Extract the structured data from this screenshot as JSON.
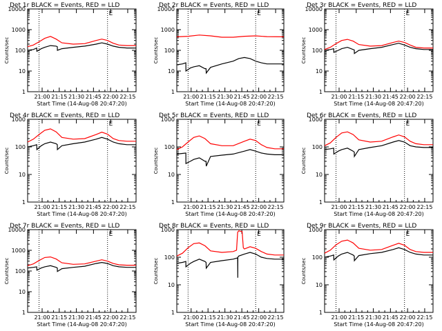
{
  "figure": {
    "ylabel": "Counts/sec",
    "xlabel": "Start Time (14-Aug-08 20:47:20)",
    "corner_mark": "E",
    "colors": {
      "events": "#000000",
      "lld": "#ff0000",
      "axes": "#000000"
    }
  },
  "chart_data": [
    {
      "type": "line",
      "title": "Det 1r BLACK = Events, RED = LLD",
      "xlabel": "Start Time (14-Aug-08 20:47:20)",
      "ylabel": "Counts/sec",
      "yscale": "log",
      "ylim": [
        1,
        10000
      ],
      "yticks": [
        "1",
        "10",
        "100",
        "1000",
        "10000"
      ],
      "xticks": [
        "21:00",
        "21:15",
        "21:30",
        "21:45",
        "22:00",
        "22:15"
      ],
      "xlim_minutes": [
        0,
        95
      ],
      "xtick_minutes": [
        12.7,
        27.7,
        42.7,
        57.7,
        72.7,
        87.7
      ],
      "dotted_lines_minutes": [
        10,
        70
      ],
      "series": [
        {
          "name": "Events",
          "color": "#000000",
          "x": [
            0,
            5,
            8,
            8.1,
            12,
            15,
            20,
            25,
            26,
            26.1,
            30,
            40,
            50,
            60,
            65,
            70,
            75,
            80,
            87,
            95
          ],
          "y": [
            100,
            110,
            130,
            90,
            120,
            140,
            170,
            160,
            150,
            100,
            120,
            140,
            160,
            200,
            230,
            200,
            160,
            140,
            130,
            130
          ]
        },
        {
          "name": "LLD",
          "color": "#ff0000",
          "x": [
            0,
            5,
            10,
            15,
            20,
            25,
            30,
            40,
            50,
            60,
            65,
            70,
            75,
            80,
            87,
            95
          ],
          "y": [
            150,
            180,
            260,
            380,
            470,
            350,
            230,
            200,
            210,
            300,
            350,
            300,
            220,
            180,
            170,
            170
          ]
        }
      ]
    },
    {
      "type": "line",
      "title": "Det 2r BLACK = Events, RED = LLD",
      "xlabel": "Start Time (14-Aug-08 20:47:20)",
      "ylabel": "Counts/sec",
      "yscale": "log",
      "ylim": [
        1,
        10000
      ],
      "yticks": [
        "1",
        "10",
        "100",
        "1000",
        "10000"
      ],
      "xticks": [
        "21:00",
        "21:15",
        "21:30",
        "21:45",
        "22:00",
        "22:15"
      ],
      "xlim_minutes": [
        0,
        95
      ],
      "xtick_minutes": [
        12.7,
        27.7,
        42.7,
        57.7,
        72.7,
        87.7
      ],
      "dotted_lines_minutes": [
        10,
        70
      ],
      "series": [
        {
          "name": "Events",
          "color": "#000000",
          "x": [
            0,
            5,
            8,
            8.1,
            12,
            15,
            20,
            25,
            26,
            26.1,
            30,
            40,
            50,
            55,
            60,
            65,
            70,
            75,
            80,
            87,
            95
          ],
          "y": [
            20,
            22,
            25,
            10,
            14,
            16,
            18,
            13,
            13,
            8,
            15,
            22,
            30,
            40,
            45,
            40,
            30,
            25,
            22,
            22,
            22
          ]
        },
        {
          "name": "LLD",
          "color": "#ff0000",
          "x": [
            0,
            10,
            20,
            30,
            40,
            50,
            60,
            70,
            80,
            95
          ],
          "y": [
            450,
            480,
            550,
            500,
            430,
            430,
            480,
            500,
            460,
            450
          ]
        }
      ]
    },
    {
      "type": "line",
      "title": "Det 3r BLACK = Events, RED = LLD",
      "xlabel": "Start Time (14-Aug-08 20:47:20)",
      "ylabel": "Counts/sec",
      "yscale": "log",
      "ylim": [
        1,
        10000
      ],
      "yticks": [
        "1",
        "10",
        "100",
        "1000",
        "10000"
      ],
      "xticks": [
        "21:00",
        "21:15",
        "21:30",
        "21:45",
        "22:00",
        "22:15"
      ],
      "xlim_minutes": [
        0,
        95
      ],
      "xtick_minutes": [
        12.7,
        27.7,
        42.7,
        57.7,
        72.7,
        87.7
      ],
      "dotted_lines_minutes": [
        10,
        70
      ],
      "series": [
        {
          "name": "Events",
          "color": "#000000",
          "x": [
            0,
            5,
            8,
            8.1,
            12,
            15,
            20,
            25,
            26,
            26.1,
            30,
            40,
            50,
            60,
            65,
            70,
            75,
            80,
            87,
            95
          ],
          "y": [
            100,
            110,
            120,
            80,
            100,
            120,
            140,
            110,
            105,
            70,
            100,
            120,
            140,
            190,
            220,
            180,
            140,
            120,
            110,
            110
          ]
        },
        {
          "name": "LLD",
          "color": "#ff0000",
          "x": [
            0,
            5,
            10,
            15,
            20,
            25,
            30,
            40,
            50,
            60,
            65,
            70,
            75,
            80,
            87,
            95
          ],
          "y": [
            110,
            140,
            210,
            300,
            340,
            280,
            190,
            160,
            170,
            240,
            280,
            240,
            180,
            140,
            130,
            130
          ]
        }
      ]
    },
    {
      "type": "line",
      "title": "Det 4r BLACK = Events, RED = LLD",
      "xlabel": "Start Time (14-Aug-08 20:47:20)",
      "ylabel": "Counts/sec",
      "yscale": "log",
      "ylim": [
        1,
        1000
      ],
      "yticks": [
        "1",
        "10",
        "100",
        "1000"
      ],
      "xticks": [
        "21:00",
        "21:15",
        "21:30",
        "21:45",
        "22:00",
        "22:15"
      ],
      "xlim_minutes": [
        0,
        95
      ],
      "xtick_minutes": [
        12.7,
        27.7,
        42.7,
        57.7,
        72.7,
        87.7
      ],
      "dotted_lines_minutes": [
        10,
        70
      ],
      "series": [
        {
          "name": "Events",
          "color": "#000000",
          "x": [
            0,
            5,
            8,
            8.1,
            12,
            15,
            20,
            25,
            26,
            26.1,
            30,
            40,
            50,
            60,
            65,
            70,
            75,
            80,
            87,
            95
          ],
          "y": [
            100,
            110,
            120,
            80,
            110,
            130,
            150,
            130,
            120,
            80,
            110,
            130,
            150,
            190,
            220,
            190,
            150,
            130,
            120,
            120
          ]
        },
        {
          "name": "LLD",
          "color": "#ff0000",
          "x": [
            0,
            5,
            10,
            15,
            20,
            25,
            30,
            40,
            50,
            60,
            65,
            70,
            75,
            80,
            87,
            95
          ],
          "y": [
            150,
            190,
            280,
            400,
            450,
            350,
            220,
            190,
            200,
            280,
            340,
            290,
            200,
            170,
            160,
            160
          ]
        }
      ]
    },
    {
      "type": "line",
      "title": "Det 5r BLACK = Events, RED = LLD",
      "xlabel": "Start Time (14-Aug-08 20:47:20)",
      "ylabel": "Counts/sec",
      "yscale": "log",
      "ylim": [
        1,
        1000
      ],
      "yticks": [
        "1",
        "10",
        "100",
        "1000"
      ],
      "xticks": [
        "21:00",
        "21:15",
        "21:30",
        "21:45",
        "22:00",
        "22:15"
      ],
      "xlim_minutes": [
        0,
        95
      ],
      "xtick_minutes": [
        12.7,
        27.7,
        42.7,
        57.7,
        72.7,
        87.7
      ],
      "dotted_lines_minutes": [
        10,
        70
      ],
      "series": [
        {
          "name": "Events",
          "color": "#000000",
          "x": [
            0,
            5,
            8,
            8.1,
            12,
            15,
            20,
            25,
            26,
            26.1,
            30,
            40,
            50,
            60,
            65,
            70,
            75,
            80,
            87,
            95
          ],
          "y": [
            55,
            58,
            60,
            25,
            30,
            35,
            40,
            30,
            30,
            20,
            45,
            50,
            55,
            70,
            80,
            70,
            60,
            55,
            52,
            52
          ]
        },
        {
          "name": "LLD",
          "color": "#ff0000",
          "x": [
            0,
            5,
            10,
            15,
            20,
            25,
            30,
            40,
            50,
            60,
            65,
            70,
            75,
            80,
            87,
            95
          ],
          "y": [
            80,
            100,
            150,
            220,
            250,
            200,
            130,
            110,
            110,
            160,
            190,
            170,
            120,
            95,
            85,
            85
          ]
        }
      ]
    },
    {
      "type": "line",
      "title": "Det 6r BLACK = Events, RED = LLD",
      "xlabel": "Start Time (14-Aug-08 20:47:20)",
      "ylabel": "Counts/sec",
      "yscale": "log",
      "ylim": [
        1,
        1000
      ],
      "yticks": [
        "1",
        "10",
        "100",
        "1000"
      ],
      "xticks": [
        "21:00",
        "21:15",
        "21:30",
        "21:45",
        "22:00",
        "22:15"
      ],
      "xlim_minutes": [
        0,
        95
      ],
      "xtick_minutes": [
        12.7,
        27.7,
        42.7,
        57.7,
        72.7,
        87.7
      ],
      "dotted_lines_minutes": [
        10,
        70
      ],
      "series": [
        {
          "name": "Events",
          "color": "#000000",
          "x": [
            0,
            5,
            8,
            8.1,
            12,
            15,
            20,
            25,
            26,
            26.1,
            30,
            40,
            50,
            60,
            65,
            70,
            75,
            80,
            87,
            95
          ],
          "y": [
            80,
            85,
            90,
            55,
            70,
            80,
            90,
            70,
            65,
            45,
            80,
            95,
            110,
            150,
            170,
            150,
            110,
            100,
            95,
            95
          ]
        },
        {
          "name": "LLD",
          "color": "#ff0000",
          "x": [
            0,
            5,
            10,
            15,
            20,
            25,
            30,
            40,
            50,
            60,
            65,
            70,
            75,
            80,
            87,
            95
          ],
          "y": [
            110,
            140,
            220,
            320,
            350,
            280,
            180,
            150,
            160,
            230,
            270,
            230,
            160,
            130,
            120,
            120
          ]
        }
      ]
    },
    {
      "type": "line",
      "title": "Det 7r BLACK = Events, RED = LLD",
      "xlabel": "Start Time (14-Aug-08 20:47:20)",
      "ylabel": "Counts/sec",
      "yscale": "log",
      "ylim": [
        1,
        10000
      ],
      "yticks": [
        "1",
        "10",
        "100",
        "1000",
        "10000"
      ],
      "xticks": [
        "21:00",
        "21:15",
        "21:30",
        "21:45",
        "22:00",
        "22:15"
      ],
      "xlim_minutes": [
        0,
        95
      ],
      "xtick_minutes": [
        12.7,
        27.7,
        42.7,
        57.7,
        72.7,
        87.7
      ],
      "dotted_lines_minutes": [
        10,
        70
      ],
      "series": [
        {
          "name": "Events",
          "color": "#000000",
          "x": [
            0,
            5,
            8,
            8.1,
            12,
            15,
            20,
            25,
            26,
            26.1,
            30,
            40,
            50,
            60,
            65,
            70,
            75,
            80,
            87,
            95
          ],
          "y": [
            140,
            150,
            160,
            110,
            140,
            160,
            180,
            150,
            140,
            95,
            130,
            150,
            170,
            230,
            260,
            230,
            180,
            160,
            150,
            150
          ]
        },
        {
          "name": "LLD",
          "color": "#ff0000",
          "x": [
            0,
            5,
            10,
            15,
            20,
            25,
            30,
            40,
            50,
            60,
            65,
            70,
            75,
            80,
            87,
            95
          ],
          "y": [
            180,
            220,
            320,
            450,
            480,
            380,
            250,
            210,
            220,
            300,
            350,
            300,
            230,
            200,
            190,
            190
          ]
        }
      ]
    },
    {
      "type": "line",
      "title": "Det 8r BLACK = Events, RED = LLD",
      "xlabel": "Start Time (14-Aug-08 20:47:20)",
      "ylabel": "Counts/sec",
      "yscale": "log",
      "ylim": [
        1,
        1000
      ],
      "yticks": [
        "1",
        "10",
        "100",
        "1000"
      ],
      "xticks": [
        "21:00",
        "21:15",
        "21:30",
        "21:45",
        "22:00",
        "22:15"
      ],
      "xlim_minutes": [
        0,
        95
      ],
      "xtick_minutes": [
        12.7,
        27.7,
        42.7,
        57.7,
        72.7,
        87.7
      ],
      "dotted_lines_minutes": [
        10,
        70
      ],
      "series": [
        {
          "name": "Events",
          "color": "#000000",
          "x": [
            0,
            5,
            8,
            8.1,
            12,
            15,
            20,
            25,
            26,
            26.1,
            30,
            40,
            50,
            54,
            54.1,
            54.2,
            55,
            60,
            65,
            70,
            75,
            80,
            87,
            95
          ],
          "y": [
            60,
            65,
            70,
            45,
            60,
            70,
            85,
            70,
            65,
            40,
            65,
            75,
            85,
            95,
            18,
            100,
            110,
            130,
            150,
            130,
            100,
            90,
            85,
            85
          ]
        },
        {
          "name": "LLD",
          "color": "#ff0000",
          "x": [
            0,
            5,
            10,
            15,
            20,
            25,
            30,
            40,
            50,
            53,
            54,
            55,
            58,
            59,
            60,
            65,
            70,
            75,
            80,
            87,
            95
          ],
          "y": [
            110,
            140,
            220,
            310,
            330,
            260,
            170,
            150,
            160,
            180,
            800,
            900,
            850,
            220,
            200,
            240,
            210,
            160,
            130,
            120,
            120
          ]
        }
      ]
    },
    {
      "type": "line",
      "title": "Det 9r BLACK = Events, RED = LLD",
      "xlabel": "Start Time (14-Aug-08 20:47:20)",
      "ylabel": "Counts/sec",
      "yscale": "log",
      "ylim": [
        1,
        1000
      ],
      "yticks": [
        "1",
        "10",
        "100",
        "1000"
      ],
      "xticks": [
        "21:00",
        "21:15",
        "21:30",
        "21:45",
        "22:00",
        "22:15"
      ],
      "xlim_minutes": [
        0,
        95
      ],
      "xtick_minutes": [
        12.7,
        27.7,
        42.7,
        57.7,
        72.7,
        87.7
      ],
      "dotted_lines_minutes": [
        10,
        70
      ],
      "series": [
        {
          "name": "Events",
          "color": "#000000",
          "x": [
            0,
            5,
            8,
            8.1,
            12,
            15,
            20,
            25,
            26,
            26.1,
            30,
            40,
            50,
            60,
            65,
            70,
            75,
            80,
            87,
            95
          ],
          "y": [
            100,
            110,
            120,
            80,
            110,
            130,
            150,
            120,
            110,
            75,
            115,
            135,
            150,
            190,
            220,
            190,
            150,
            130,
            120,
            120
          ]
        },
        {
          "name": "LLD",
          "color": "#ff0000",
          "x": [
            0,
            5,
            10,
            15,
            20,
            25,
            30,
            40,
            50,
            60,
            65,
            70,
            75,
            80,
            87,
            95
          ],
          "y": [
            140,
            180,
            280,
            380,
            420,
            330,
            210,
            180,
            190,
            270,
            320,
            270,
            190,
            160,
            150,
            150
          ]
        }
      ]
    }
  ]
}
